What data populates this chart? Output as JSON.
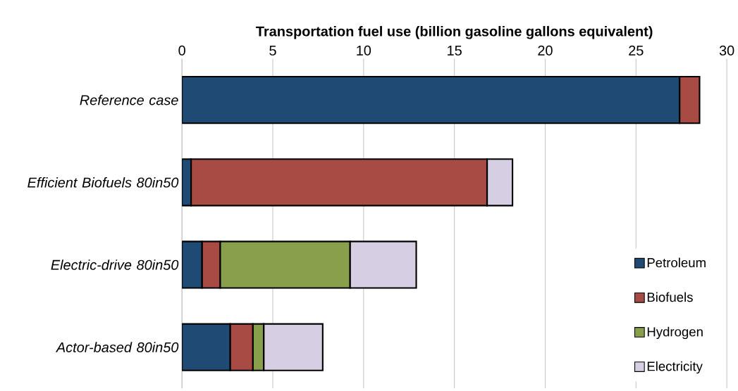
{
  "chart_data": {
    "type": "bar",
    "orientation": "horizontal",
    "stacked": true,
    "xlabel": "Transportation fuel use (billion gasoline gallons equivalent)",
    "categories": [
      "*Reference case*",
      "*Efficient Biofuels 80in50*",
      "*Electric-drive 80in50*",
      "*Actor-based 80in50*"
    ],
    "series": [
      {
        "name": "Petroleum",
        "color": "#1f4a73",
        "values": [
          27.4,
          0.5,
          1.1,
          2.65
        ]
      },
      {
        "name": "Biofuels",
        "color": "#a84b44",
        "values": [
          1.1,
          16.3,
          1.0,
          1.25
        ]
      },
      {
        "name": "Hydrogen",
        "color": "#88a04c",
        "values": [
          0,
          0,
          7.15,
          0.6
        ]
      },
      {
        "name": "Electricity",
        "color": "#d6cfe3",
        "values": [
          0,
          1.4,
          3.65,
          3.25
        ]
      }
    ],
    "xlim": [
      0,
      30
    ],
    "xticks": [
      0,
      5,
      10,
      15,
      20,
      25,
      30
    ],
    "grid": "x",
    "legend": "bottom right"
  }
}
